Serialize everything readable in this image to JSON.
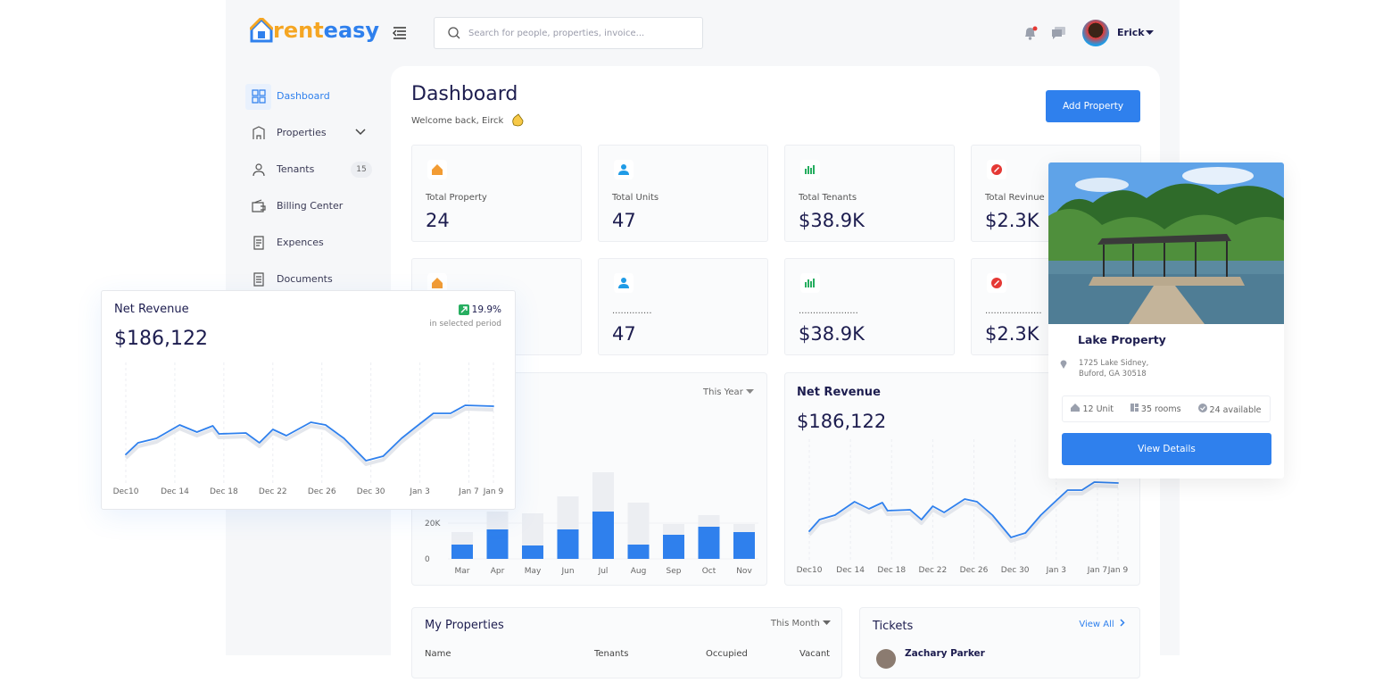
{
  "header": {
    "logo_prefix": "rent",
    "logo_suffix": "easy",
    "search_placeholder": "Search for people, properties, invoice...",
    "user": "Erick"
  },
  "sidebar": {
    "items": [
      "Dashboard",
      "Properties",
      "Tenants",
      "Billing Center",
      "Expences",
      "Documents"
    ],
    "tenants_badge": "15"
  },
  "dashboard": {
    "title": "Dashboard",
    "welcome": "Welcome back, Eirck",
    "add_button": "Add Property"
  },
  "stats": {
    "row1": [
      {
        "label": "Total Property",
        "value": "24"
      },
      {
        "label": "Total Units",
        "value": "47"
      },
      {
        "label": "Total Tenants",
        "value": "$38.9K"
      },
      {
        "label": "Total Revinue",
        "value": "$2.3K"
      }
    ],
    "row2": [
      {
        "label": "..............",
        "value": "47"
      },
      {
        "label": ".....................",
        "value": "$38.9K"
      },
      {
        "label": "....................",
        "value": "$2.3K"
      }
    ]
  },
  "revenue_bars": {
    "type": "bar",
    "period": "This Year",
    "categories": [
      "Mar",
      "Apr",
      "May",
      "Jun",
      "Jul",
      "Aug",
      "Sep",
      "Oct",
      "Nov"
    ],
    "series": [
      {
        "color": "#eceef2",
        "values": [
          15000,
          26500,
          25500,
          35000,
          48500,
          31500,
          19500,
          24500,
          19500
        ]
      },
      {
        "color": "#2f80ed",
        "values": [
          8000,
          16500,
          7500,
          16500,
          26500,
          8000,
          13500,
          18000,
          15000
        ]
      }
    ],
    "ylim": [
      0,
      50000
    ],
    "yticks": [
      0,
      {
        "value": 20000,
        "label": "20K"
      }
    ]
  },
  "net_revenue": {
    "type": "line",
    "title": "Net Revenue",
    "total": "$186,122",
    "change": "19.9%",
    "change_note": "in selected period",
    "color": "#2f80ed",
    "xlim": [
      0,
      30
    ],
    "xticks": [
      {
        "value": 0,
        "label": "Dec10"
      },
      {
        "value": 4,
        "label": "Dec 14"
      },
      {
        "value": 8,
        "label": "Dec 18"
      },
      {
        "value": 12,
        "label": "Dec 22"
      },
      {
        "value": 16,
        "label": "Dec 26"
      },
      {
        "value": 20,
        "label": "Dec 30"
      },
      {
        "value": 24,
        "label": "Jan 3"
      },
      {
        "value": 28,
        "label": "Jan 7"
      },
      {
        "value": 30,
        "label": "Jan 9"
      }
    ],
    "x": [
      0,
      1,
      2.5,
      4.4,
      5.8,
      7.1,
      7.6,
      9.8,
      10.9,
      12,
      13.1,
      15.1,
      16.3,
      17.8,
      19.6,
      21,
      22.5,
      23.6,
      25.1,
      26.5,
      27.7,
      30
    ],
    "values": [
      32,
      45,
      50,
      65,
      57,
      64,
      55,
      56,
      45,
      60,
      53,
      68,
      65,
      50,
      25,
      30,
      50,
      62,
      78,
      78,
      87,
      86
    ],
    "ylim": [
      0,
      130
    ]
  },
  "property_card": {
    "name": "Lake Property",
    "address_line1": "1725 Lake Sidney,",
    "address_line2": "Buford, GA 30518",
    "units": "12 Unit",
    "rooms": "35 rooms",
    "available": "24 available",
    "button": "View Details"
  },
  "my_properties": {
    "title": "My Properties",
    "period": "This Month",
    "columns": [
      "Name",
      "Tenants",
      "Occupied",
      "Vacant"
    ]
  },
  "tickets": {
    "title": "Tickets",
    "view_all": "View All",
    "first": "Zachary Parker"
  }
}
